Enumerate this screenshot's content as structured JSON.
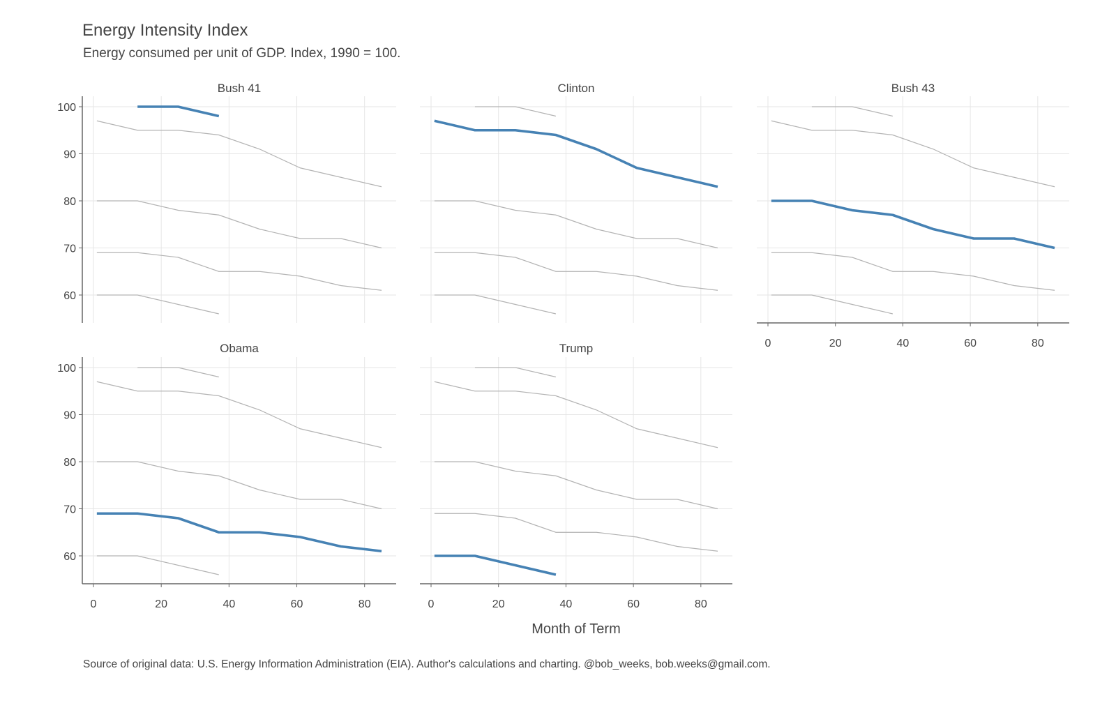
{
  "chart_data": {
    "type": "line",
    "title": "Energy Intensity Index",
    "subtitle": "Energy consumed per unit of GDP. Index, 1990 = 100.",
    "xlabel": "Month of Term",
    "ylabel": "",
    "caption": "Source of original data: U.S. Energy Information Administration (EIA). Author's calculations and charting. @bob_weeks, bob.weeks@gmail.com.",
    "xlim": [
      0,
      88
    ],
    "ylim": [
      54,
      102
    ],
    "x_ticks": [
      0,
      20,
      40,
      60,
      80
    ],
    "y_ticks": [
      60,
      70,
      80,
      90,
      100
    ],
    "grid": true,
    "highlight_color": "#4682b4",
    "background_color": "#b3b3b3",
    "panels": [
      "Bush 41",
      "Clinton",
      "Bush 43",
      "Obama",
      "Trump"
    ],
    "series": [
      {
        "name": "Bush 41",
        "x": [
          13,
          25,
          37
        ],
        "values": [
          100,
          100,
          98
        ]
      },
      {
        "name": "Clinton",
        "x": [
          1,
          13,
          25,
          37,
          49,
          61,
          73,
          85
        ],
        "values": [
          97,
          95,
          95,
          94,
          91,
          87,
          85,
          83
        ]
      },
      {
        "name": "Bush 43",
        "x": [
          1,
          13,
          25,
          37,
          49,
          61,
          73,
          85
        ],
        "values": [
          80,
          80,
          78,
          77,
          74,
          72,
          72,
          70
        ]
      },
      {
        "name": "Obama",
        "x": [
          1,
          13,
          25,
          37,
          49,
          61,
          73,
          85
        ],
        "values": [
          69,
          69,
          68,
          65,
          65,
          64,
          62,
          61
        ]
      },
      {
        "name": "Trump",
        "x": [
          1,
          13,
          25,
          37
        ],
        "values": [
          60,
          60,
          58,
          56
        ]
      }
    ]
  }
}
